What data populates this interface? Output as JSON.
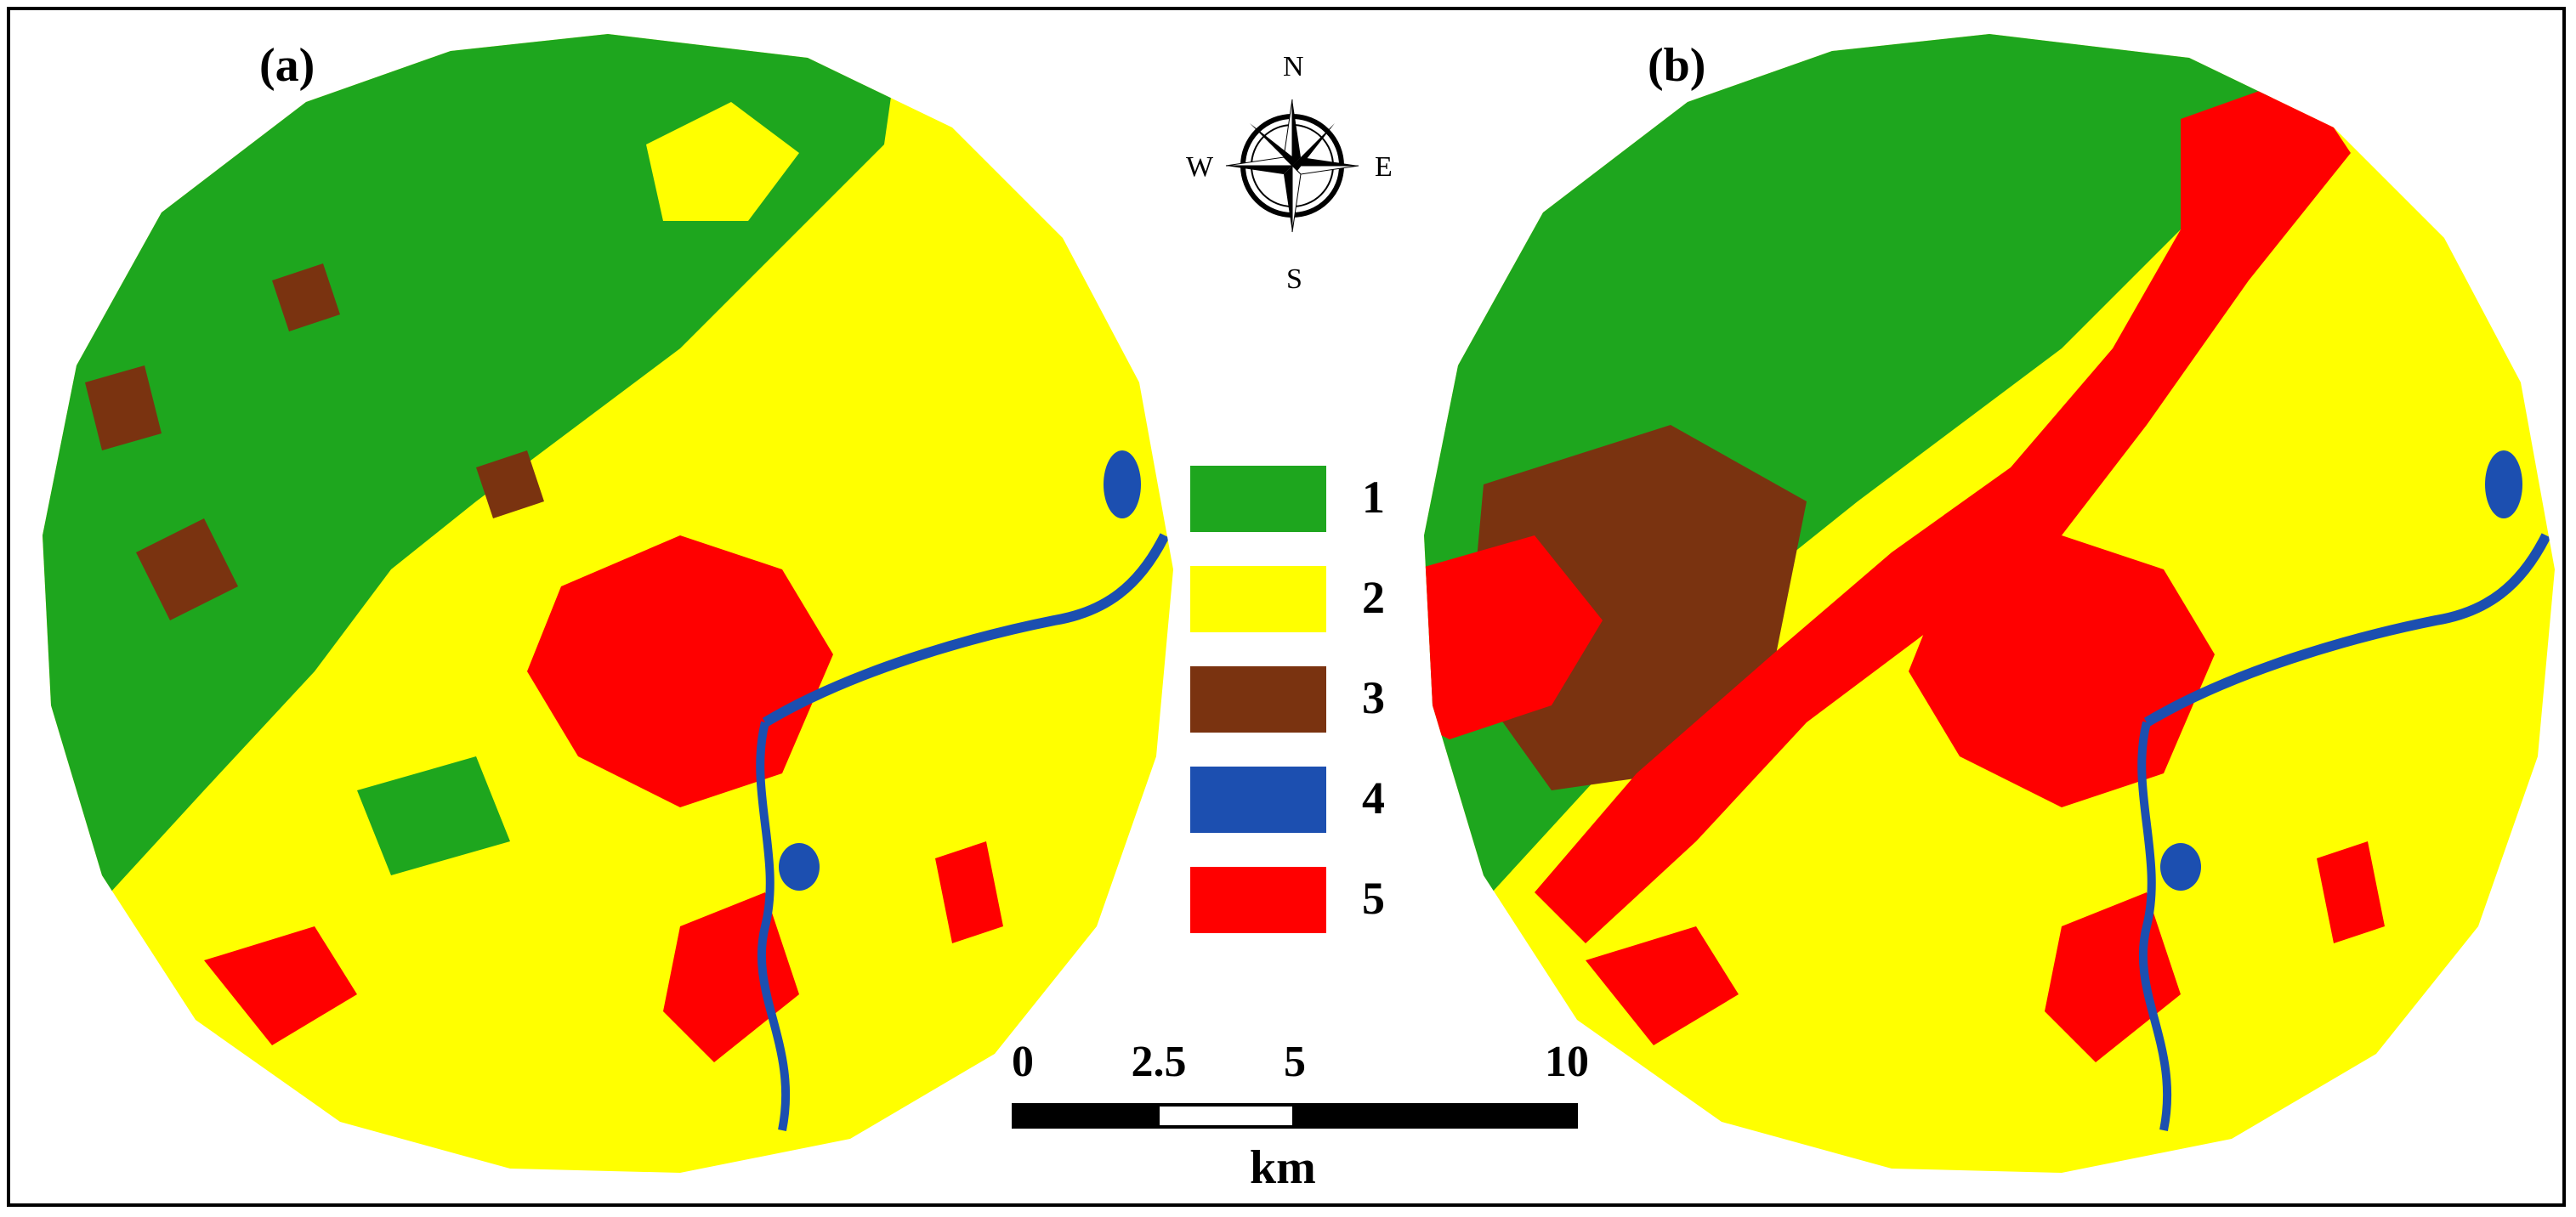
{
  "panels": [
    {
      "label": "(a)"
    },
    {
      "label": "(b)"
    }
  ],
  "legend": [
    {
      "label": "1",
      "color": "#1ea61e"
    },
    {
      "label": "2",
      "color": "#ffff00"
    },
    {
      "label": "3",
      "color": "#7a3310"
    },
    {
      "label": "4",
      "color": "#1c4fb0"
    },
    {
      "label": "5",
      "color": "#ff0000"
    }
  ],
  "compass": {
    "north": "N",
    "south": "S",
    "east": "E",
    "west": "W"
  },
  "scale": {
    "ticks": [
      "0",
      "2.5",
      "5",
      "10"
    ],
    "units": "km"
  }
}
